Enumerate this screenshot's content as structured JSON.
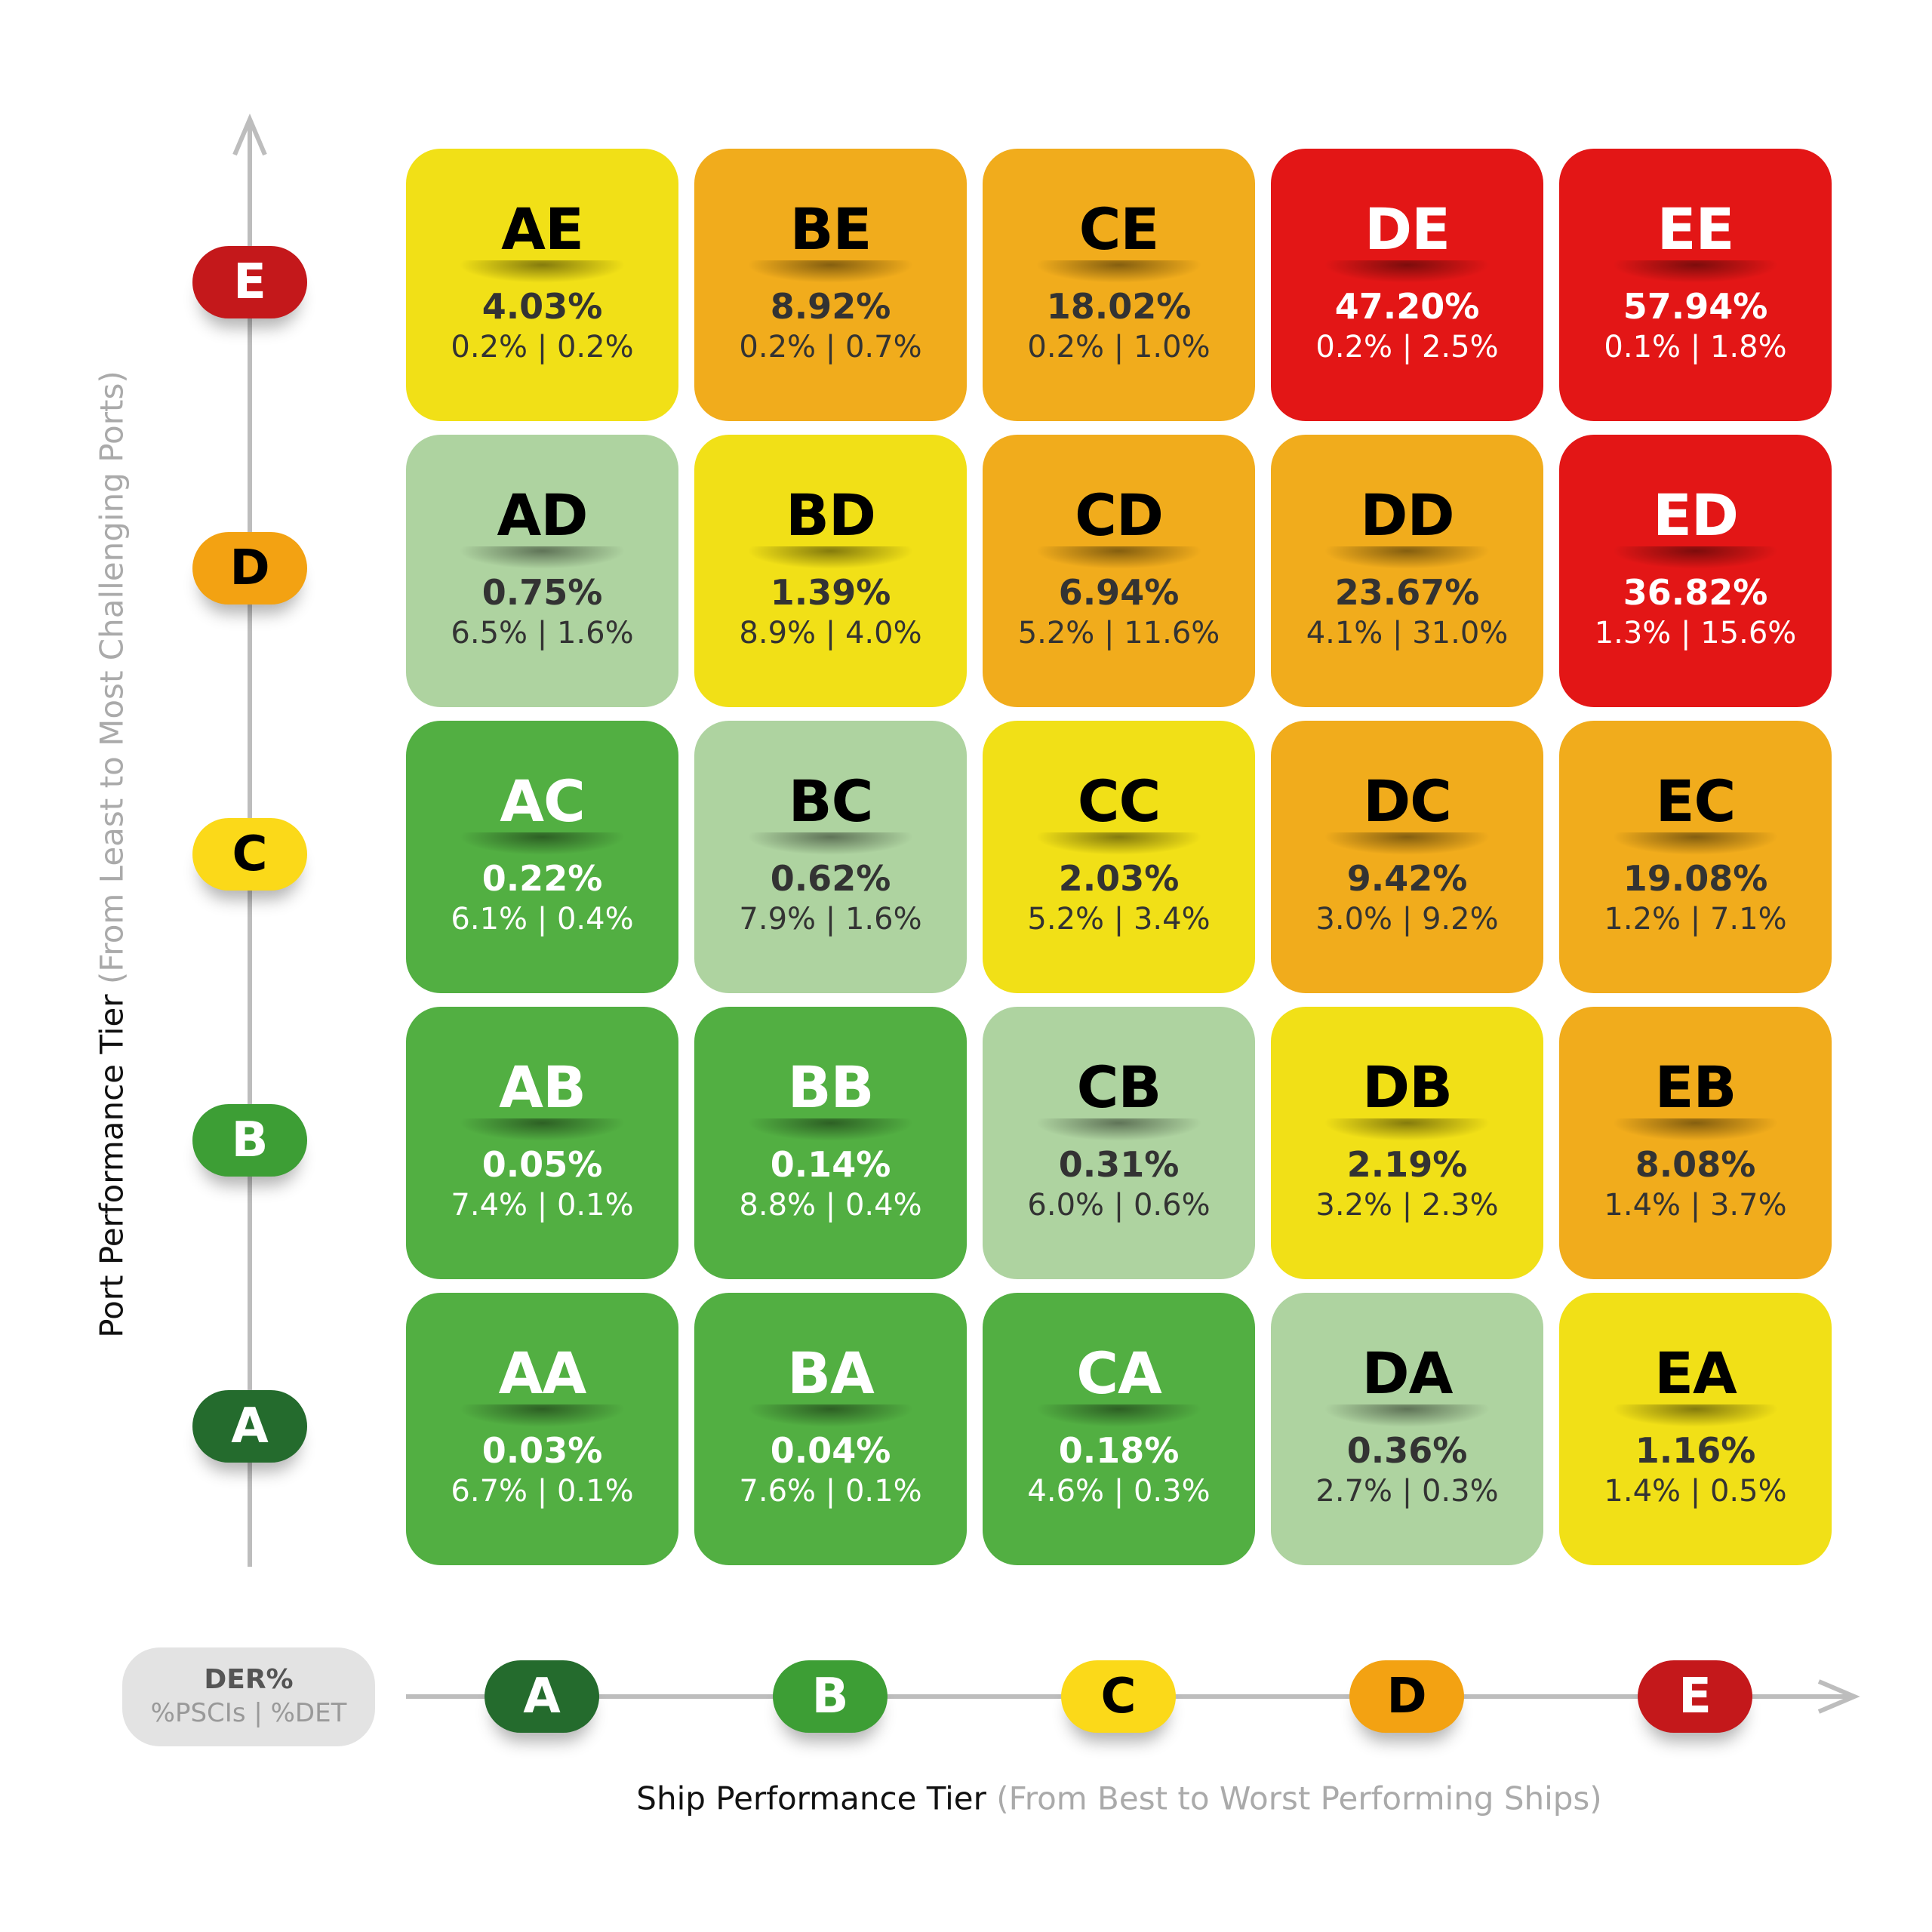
{
  "chart_data": {
    "type": "heatmap",
    "title": "",
    "xlabel": "Ship Performance Tier",
    "xlabel_note": "(From Best to Worst Performing Ships)",
    "ylabel": "Port Performance Tier",
    "ylabel_note": "(From Least to Most Challenging Ports)",
    "x_tiers": [
      "A",
      "B",
      "C",
      "D",
      "E"
    ],
    "y_tiers": [
      "A",
      "B",
      "C",
      "D",
      "E"
    ],
    "legend": {
      "title": "DER%",
      "subtitle": "%PSCIs | %DET"
    },
    "tier_colors": {
      "A": "#246B2D",
      "B": "#3D9E35",
      "C": "#FBD919",
      "D": "#F3A212",
      "E": "#C4181B"
    },
    "cell_colors": {
      "green": "#52AF42",
      "lightgreen": "#AED3A0",
      "yellow": "#F1E017",
      "orange": "#F1AC1C",
      "red": "#E31616"
    },
    "rows": [
      {
        "port_tier": "E",
        "cells": [
          {
            "code": "AE",
            "der": "4.03%",
            "sub": "0.2% | 0.2%",
            "color": "yellow"
          },
          {
            "code": "BE",
            "der": "8.92%",
            "sub": "0.2% | 0.7%",
            "color": "orange"
          },
          {
            "code": "CE",
            "der": "18.02%",
            "sub": "0.2% | 1.0%",
            "color": "orange"
          },
          {
            "code": "DE",
            "der": "47.20%",
            "sub": "0.2% | 2.5%",
            "color": "red"
          },
          {
            "code": "EE",
            "der": "57.94%",
            "sub": "0.1% | 1.8%",
            "color": "red"
          }
        ]
      },
      {
        "port_tier": "D",
        "cells": [
          {
            "code": "AD",
            "der": "0.75%",
            "sub": "6.5% | 1.6%",
            "color": "lightgreen"
          },
          {
            "code": "BD",
            "der": "1.39%",
            "sub": "8.9% | 4.0%",
            "color": "yellow"
          },
          {
            "code": "CD",
            "der": "6.94%",
            "sub": "5.2% | 11.6%",
            "color": "orange"
          },
          {
            "code": "DD",
            "der": "23.67%",
            "sub": "4.1% | 31.0%",
            "color": "orange"
          },
          {
            "code": "ED",
            "der": "36.82%",
            "sub": "1.3% | 15.6%",
            "color": "red"
          }
        ]
      },
      {
        "port_tier": "C",
        "cells": [
          {
            "code": "AC",
            "der": "0.22%",
            "sub": "6.1% | 0.4%",
            "color": "green"
          },
          {
            "code": "BC",
            "der": "0.62%",
            "sub": "7.9% | 1.6%",
            "color": "lightgreen"
          },
          {
            "code": "CC",
            "der": "2.03%",
            "sub": "5.2% | 3.4%",
            "color": "yellow"
          },
          {
            "code": "DC",
            "der": "9.42%",
            "sub": "3.0% | 9.2%",
            "color": "orange"
          },
          {
            "code": "EC",
            "der": "19.08%",
            "sub": "1.2% | 7.1%",
            "color": "orange"
          }
        ]
      },
      {
        "port_tier": "B",
        "cells": [
          {
            "code": "AB",
            "der": "0.05%",
            "sub": "7.4% | 0.1%",
            "color": "green"
          },
          {
            "code": "BB",
            "der": "0.14%",
            "sub": "8.8% | 0.4%",
            "color": "green"
          },
          {
            "code": "CB",
            "der": "0.31%",
            "sub": "6.0% | 0.6%",
            "color": "lightgreen"
          },
          {
            "code": "DB",
            "der": "2.19%",
            "sub": "3.2% | 2.3%",
            "color": "yellow"
          },
          {
            "code": "EB",
            "der": "8.08%",
            "sub": "1.4% | 3.7%",
            "color": "orange"
          }
        ]
      },
      {
        "port_tier": "A",
        "cells": [
          {
            "code": "AA",
            "der": "0.03%",
            "sub": "6.7% | 0.1%",
            "color": "green"
          },
          {
            "code": "BA",
            "der": "0.04%",
            "sub": "7.6% | 0.1%",
            "color": "green"
          },
          {
            "code": "CA",
            "der": "0.18%",
            "sub": "4.6% | 0.3%",
            "color": "green"
          },
          {
            "code": "DA",
            "der": "0.36%",
            "sub": "2.7% | 0.3%",
            "color": "lightgreen"
          },
          {
            "code": "EA",
            "der": "1.16%",
            "sub": "1.4% | 0.5%",
            "color": "yellow"
          }
        ]
      }
    ]
  }
}
